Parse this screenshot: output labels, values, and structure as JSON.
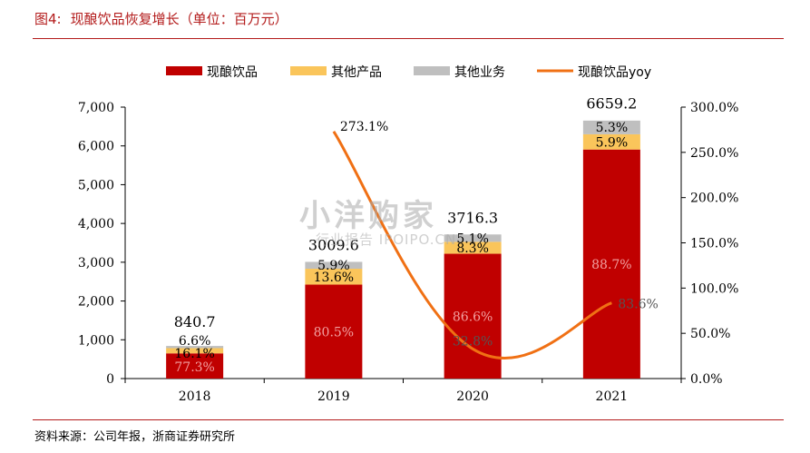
{
  "title": {
    "figure_no": "图4:",
    "text": "现酿饮品恢复增长（单位：百万元）"
  },
  "source": "资料来源：公司年报，浙商证券研究所",
  "watermark": {
    "big": "小洋购家",
    "small": "行业报告 IPOIPO.CN"
  },
  "colors": {
    "beverage": "#c00000",
    "other_products": "#fac55b",
    "other_business": "#bfbfbf",
    "yoy_line": "#f07014",
    "title_red": "#b31b1b"
  },
  "chart_data": {
    "type": "bar",
    "stacked": true,
    "categories": [
      "2018",
      "2019",
      "2020",
      "2021"
    ],
    "totals": [
      840.7,
      3009.6,
      3716.3,
      6659.2
    ],
    "total_labels": [
      "840.7",
      "3009.6",
      "3716.3",
      "6659.2"
    ],
    "series": [
      {
        "name": "现酿饮品",
        "share": [
          0.773,
          0.805,
          0.866,
          0.887
        ],
        "labels": [
          "77.3%",
          "80.5%",
          "86.6%",
          "88.7%"
        ]
      },
      {
        "name": "其他产品",
        "share": [
          0.161,
          0.136,
          0.083,
          0.059
        ],
        "labels": [
          "16.1%",
          "13.6%",
          "8.3%",
          "5.9%"
        ]
      },
      {
        "name": "其他业务",
        "share": [
          0.066,
          0.059,
          0.051,
          0.053
        ],
        "labels": [
          "6.6%",
          "5.9%",
          "5.1%",
          "5.3%"
        ]
      }
    ],
    "line": {
      "name": "现酿饮品yoy",
      "x": [
        "2019",
        "2020",
        "2021"
      ],
      "values": [
        273.1,
        32.8,
        83.6
      ],
      "labels": [
        "273.1%",
        "32.8%",
        "83.6%"
      ]
    },
    "y_left": {
      "min": 0,
      "max": 7000,
      "step": 1000,
      "tick_labels": [
        "0",
        "1,000",
        "2,000",
        "3,000",
        "4,000",
        "5,000",
        "6,000",
        "7,000"
      ]
    },
    "y_right": {
      "min": 0,
      "max": 300,
      "step": 50,
      "tick_labels": [
        "0.0%",
        "50.0%",
        "100.0%",
        "150.0%",
        "200.0%",
        "250.0%",
        "300.0%"
      ]
    },
    "legend_position": "top-center",
    "grid": false
  }
}
